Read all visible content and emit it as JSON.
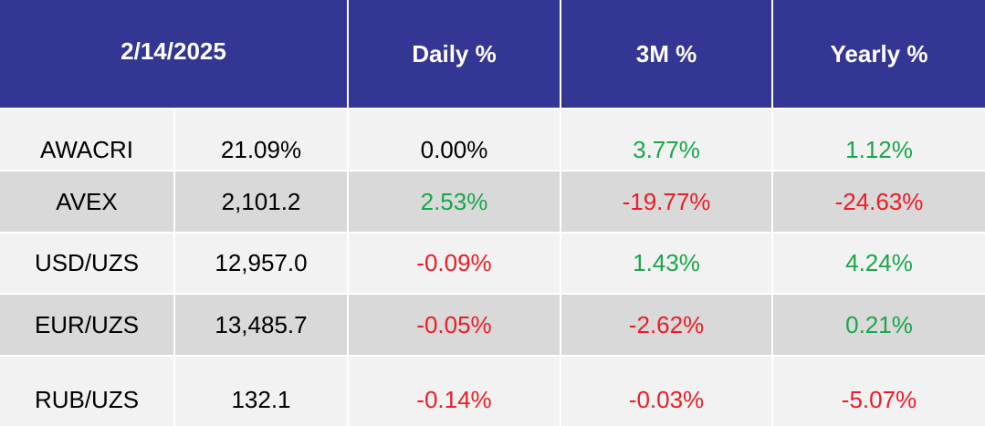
{
  "header": {
    "date": "2/14/2025",
    "daily": "Daily %",
    "three_month": "3M %",
    "yearly": "Yearly %"
  },
  "rows": [
    {
      "name": "AWACRI",
      "value": "21.09%",
      "daily": "0.00%",
      "daily_sign": "neu",
      "three_month": "3.77%",
      "three_month_sign": "pos",
      "yearly": "1.12%",
      "yearly_sign": "pos"
    },
    {
      "name": "AVEX",
      "value": "2,101.2",
      "daily": "2.53%",
      "daily_sign": "pos",
      "three_month": "-19.77%",
      "three_month_sign": "neg",
      "yearly": "-24.63%",
      "yearly_sign": "neg"
    },
    {
      "name": "USD/UZS",
      "value": "12,957.0",
      "daily": "-0.09%",
      "daily_sign": "neg",
      "three_month": "1.43%",
      "three_month_sign": "pos",
      "yearly": "4.24%",
      "yearly_sign": "pos"
    },
    {
      "name": "EUR/UZS",
      "value": "13,485.7",
      "daily": "-0.05%",
      "daily_sign": "neg",
      "three_month": "-2.62%",
      "three_month_sign": "neg",
      "yearly": "0.21%",
      "yearly_sign": "pos"
    },
    {
      "name": "RUB/UZS",
      "value": "132.1",
      "daily": "-0.14%",
      "daily_sign": "neg",
      "three_month": "-0.03%",
      "three_month_sign": "neg",
      "yearly": "-5.07%",
      "yearly_sign": "neg"
    }
  ],
  "colors": {
    "header_bg": "#343694",
    "row_light": "#f2f2f2",
    "row_dark": "#d9d9d9",
    "positive": "#1aa64a",
    "negative": "#ee1c25"
  }
}
